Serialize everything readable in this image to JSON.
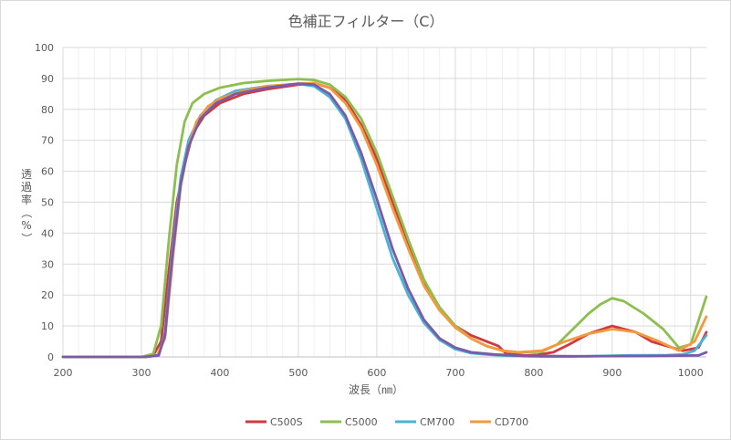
{
  "chart_data": {
    "type": "line",
    "title": "色補正フィルター（C）",
    "xlabel": "波長（㎚）",
    "ylabel_chars": [
      "透",
      "過",
      "率",
      "（",
      "%",
      "）"
    ],
    "xlim": [
      200,
      1020
    ],
    "ylim": [
      0,
      100
    ],
    "x_ticks": [
      200,
      300,
      400,
      500,
      600,
      700,
      800,
      900,
      1000
    ],
    "x_tick_labels": [
      "200",
      "300",
      "400",
      "500",
      "600",
      "700",
      "800",
      "900",
      "1000"
    ],
    "y_ticks": [
      0,
      10,
      20,
      30,
      40,
      50,
      60,
      70,
      80,
      90,
      100
    ],
    "y_tick_labels": [
      "0",
      "10",
      "20",
      "30",
      "40",
      "50",
      "60",
      "70",
      "80",
      "90",
      "100"
    ],
    "grid": true,
    "minor_x_gridlines": true,
    "legend_position": "bottom",
    "series": [
      {
        "name": "C500S",
        "color": "#d0393f",
        "points": [
          [
            200,
            0
          ],
          [
            300,
            0
          ],
          [
            315,
            0.5
          ],
          [
            325,
            5
          ],
          [
            335,
            28
          ],
          [
            345,
            50
          ],
          [
            355,
            62
          ],
          [
            365,
            72
          ],
          [
            380,
            78
          ],
          [
            400,
            82
          ],
          [
            430,
            85
          ],
          [
            460,
            86.5
          ],
          [
            500,
            88
          ],
          [
            520,
            88.5
          ],
          [
            540,
            87
          ],
          [
            560,
            83
          ],
          [
            580,
            75
          ],
          [
            600,
            64
          ],
          [
            620,
            50
          ],
          [
            640,
            36
          ],
          [
            660,
            24
          ],
          [
            680,
            16
          ],
          [
            700,
            10
          ],
          [
            720,
            7
          ],
          [
            740,
            5
          ],
          [
            755,
            3.5
          ],
          [
            765,
            1
          ],
          [
            790,
            0.5
          ],
          [
            805,
            0.7
          ],
          [
            825,
            1.5
          ],
          [
            845,
            4
          ],
          [
            870,
            7.5
          ],
          [
            900,
            10
          ],
          [
            930,
            8
          ],
          [
            950,
            5
          ],
          [
            990,
            2
          ],
          [
            1010,
            3
          ],
          [
            1020,
            8
          ]
        ]
      },
      {
        "name": "C5000",
        "color": "#8cbf4f",
        "points": [
          [
            200,
            0
          ],
          [
            300,
            0
          ],
          [
            315,
            1
          ],
          [
            325,
            10
          ],
          [
            335,
            38
          ],
          [
            345,
            62
          ],
          [
            355,
            76
          ],
          [
            365,
            82
          ],
          [
            380,
            85
          ],
          [
            400,
            87
          ],
          [
            430,
            88.5
          ],
          [
            460,
            89.2
          ],
          [
            500,
            89.8
          ],
          [
            520,
            89.5
          ],
          [
            540,
            88
          ],
          [
            560,
            84
          ],
          [
            580,
            77
          ],
          [
            600,
            66
          ],
          [
            620,
            52
          ],
          [
            640,
            38
          ],
          [
            660,
            25
          ],
          [
            680,
            16
          ],
          [
            700,
            10
          ],
          [
            720,
            6
          ],
          [
            740,
            3.5
          ],
          [
            760,
            2
          ],
          [
            780,
            1.5
          ],
          [
            810,
            1.7
          ],
          [
            830,
            4
          ],
          [
            850,
            9
          ],
          [
            870,
            14
          ],
          [
            885,
            17
          ],
          [
            900,
            19
          ],
          [
            915,
            18
          ],
          [
            940,
            14
          ],
          [
            965,
            9
          ],
          [
            985,
            3
          ],
          [
            1000,
            4
          ],
          [
            1020,
            19.5
          ]
        ]
      },
      {
        "name": "CM700",
        "color": "#46b4d6",
        "points": [
          [
            200,
            0
          ],
          [
            305,
            0
          ],
          [
            322,
            0.5
          ],
          [
            330,
            8
          ],
          [
            340,
            36
          ],
          [
            350,
            58
          ],
          [
            360,
            70
          ],
          [
            375,
            78
          ],
          [
            395,
            83
          ],
          [
            420,
            86
          ],
          [
            460,
            87.5
          ],
          [
            500,
            88.2
          ],
          [
            520,
            87.5
          ],
          [
            540,
            84
          ],
          [
            560,
            77
          ],
          [
            580,
            64
          ],
          [
            600,
            48
          ],
          [
            620,
            32
          ],
          [
            640,
            20
          ],
          [
            660,
            11
          ],
          [
            680,
            5.5
          ],
          [
            700,
            2.5
          ],
          [
            720,
            1.2
          ],
          [
            740,
            0.8
          ],
          [
            760,
            0.5
          ],
          [
            790,
            0.2
          ],
          [
            820,
            0.1
          ],
          [
            870,
            0.2
          ],
          [
            920,
            0.5
          ],
          [
            970,
            0.6
          ],
          [
            990,
            0.8
          ],
          [
            1005,
            2
          ],
          [
            1020,
            7
          ]
        ]
      },
      {
        "name": "CD700",
        "color": "#f39a3f",
        "points": [
          [
            200,
            0
          ],
          [
            305,
            0
          ],
          [
            320,
            0.5
          ],
          [
            330,
            6
          ],
          [
            340,
            32
          ],
          [
            350,
            55
          ],
          [
            360,
            68
          ],
          [
            370,
            76
          ],
          [
            385,
            81
          ],
          [
            400,
            83.5
          ],
          [
            430,
            86
          ],
          [
            460,
            87.5
          ],
          [
            500,
            88.3
          ],
          [
            520,
            88.5
          ],
          [
            540,
            87
          ],
          [
            560,
            82
          ],
          [
            580,
            74
          ],
          [
            600,
            62
          ],
          [
            620,
            48
          ],
          [
            640,
            35
          ],
          [
            660,
            23
          ],
          [
            680,
            15
          ],
          [
            700,
            9.5
          ],
          [
            720,
            6
          ],
          [
            740,
            3.5
          ],
          [
            760,
            2
          ],
          [
            780,
            1.5
          ],
          [
            810,
            2
          ],
          [
            840,
            5
          ],
          [
            870,
            7.5
          ],
          [
            900,
            9
          ],
          [
            930,
            8
          ],
          [
            960,
            5
          ],
          [
            985,
            2
          ],
          [
            1005,
            5
          ],
          [
            1020,
            13
          ]
        ]
      },
      {
        "name": "",
        "color": "#7b5aa6",
        "points": [
          [
            200,
            0
          ],
          [
            305,
            0
          ],
          [
            322,
            0.5
          ],
          [
            330,
            7
          ],
          [
            340,
            34
          ],
          [
            350,
            56
          ],
          [
            360,
            68
          ],
          [
            375,
            77
          ],
          [
            395,
            82
          ],
          [
            420,
            85
          ],
          [
            460,
            87
          ],
          [
            500,
            88.3
          ],
          [
            520,
            88
          ],
          [
            540,
            85
          ],
          [
            560,
            78
          ],
          [
            580,
            66
          ],
          [
            600,
            51
          ],
          [
            620,
            35
          ],
          [
            640,
            22
          ],
          [
            660,
            12
          ],
          [
            680,
            6
          ],
          [
            700,
            3
          ],
          [
            720,
            1.5
          ],
          [
            750,
            0.8
          ],
          [
            780,
            0.4
          ],
          [
            850,
            0.2
          ],
          [
            950,
            0.3
          ],
          [
            985,
            0.4
          ],
          [
            1010,
            0.5
          ],
          [
            1020,
            1.5
          ]
        ]
      }
    ]
  }
}
